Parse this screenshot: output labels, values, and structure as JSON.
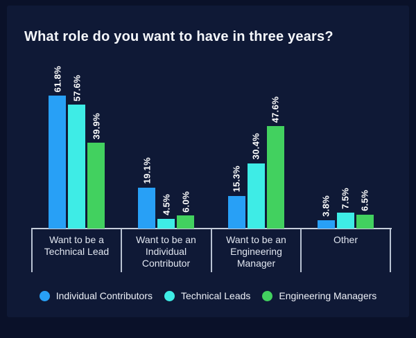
{
  "chart_data": {
    "type": "bar",
    "title": "What role do you want to have in three years?",
    "categories": [
      "Want to be a Technical Lead",
      "Want to be an Individual Contributor",
      "Want to be an Engineering Manager",
      "Other"
    ],
    "series": [
      {
        "name": "Individual Contributors",
        "color": "#28a0f6",
        "values": [
          61.8,
          19.1,
          15.3,
          3.8
        ]
      },
      {
        "name": "Technical Leads",
        "color": "#3eece6",
        "values": [
          57.6,
          4.5,
          30.4,
          7.5
        ]
      },
      {
        "name": "Engineering Managers",
        "color": "#42d15f",
        "values": [
          39.9,
          6.0,
          47.6,
          6.5
        ]
      }
    ],
    "value_suffix": "%",
    "value_labels": [
      [
        "61.8%",
        "19.1%",
        "15.3%",
        "3.8%"
      ],
      [
        "57.6%",
        "4.5%",
        "30.4%",
        "7.5%"
      ],
      [
        "39.9%",
        "6.0%",
        "47.6%",
        "6.5%"
      ]
    ],
    "ylim": [
      0,
      70
    ],
    "grid": false,
    "legend_position": "bottom",
    "background_color": "#0f1936",
    "axis_color": "#c6cedb",
    "text_color": "#ffffff"
  }
}
